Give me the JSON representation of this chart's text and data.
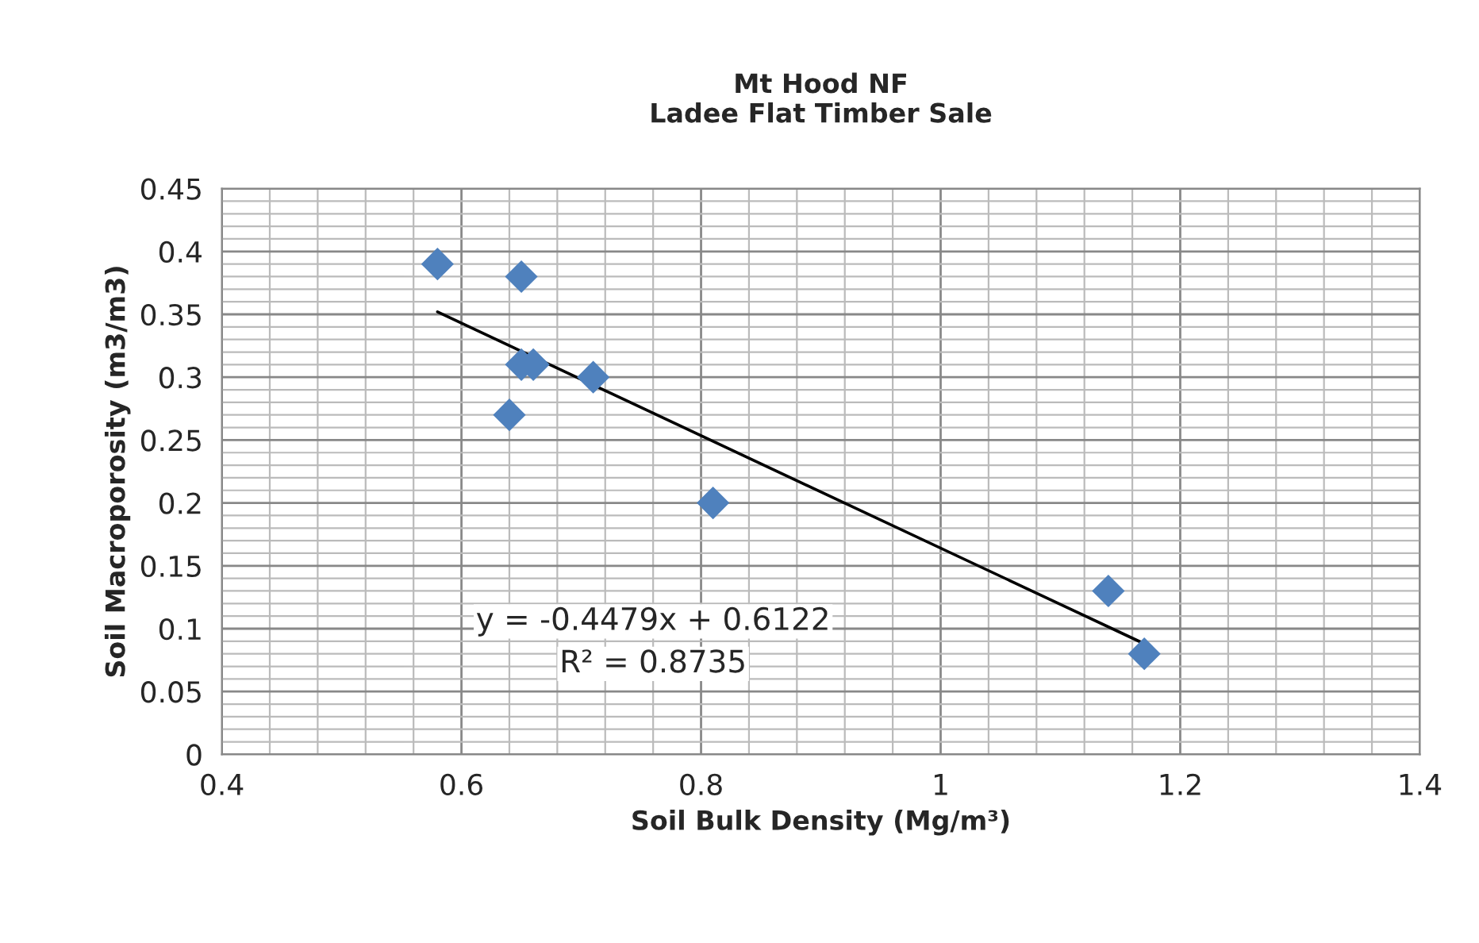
{
  "chart_data": {
    "type": "scatter",
    "title": "Mt Hood NF\nLadee Flat Timber Sale",
    "xlabel": "Soil Bulk Density (Mg/m³)",
    "ylabel": "Soil Macroporosity (m3/m3)",
    "x": [
      0.58,
      0.65,
      0.65,
      0.66,
      0.64,
      0.71,
      0.81,
      1.14,
      1.17
    ],
    "series": [
      {
        "color": "#4f81bd",
        "marker": "diamond",
        "values": [
          0.39,
          0.38,
          0.31,
          0.31,
          0.27,
          0.3,
          0.2,
          0.13,
          0.08
        ]
      },
      {
        "type": "line",
        "color": "#000000",
        "marker": "none",
        "line_style": "solid",
        "x": [
          0.58,
          1.17
        ],
        "values": [
          0.352,
          0.088
        ]
      }
    ],
    "annotations": [
      "y = -0.4479x + 0.6122",
      "R² = 0.8735"
    ],
    "xlim": [
      0.4,
      1.4
    ],
    "xticks": [
      0.4,
      0.6,
      0.8,
      {
        "value": 1,
        "label": "1"
      },
      1.2,
      1.4
    ],
    "ylim": [
      0,
      0.45
    ],
    "yticks": [
      {
        "value": 0,
        "label": "0"
      },
      0.05,
      0.1,
      0.15,
      0.2,
      0.25,
      0.3,
      0.35,
      0.4,
      0.45
    ],
    "grid": true,
    "legend": false
  }
}
